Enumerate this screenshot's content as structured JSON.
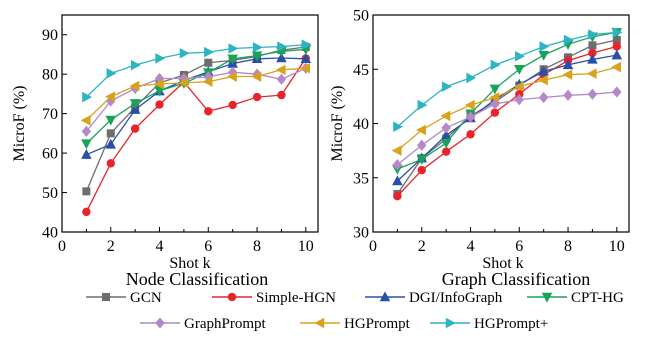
{
  "chart_data": [
    {
      "type": "line",
      "title": "Node Classification",
      "xlabel": "Shot k",
      "ylabel": "MicroF (%)",
      "xlim": [
        0,
        10.5
      ],
      "ylim": [
        40,
        95
      ],
      "xticks": [
        0,
        2,
        4,
        6,
        8,
        10
      ],
      "yticks": [
        40,
        50,
        60,
        70,
        80,
        90
      ],
      "x": [
        1,
        2,
        3,
        4,
        5,
        6,
        7,
        8,
        9,
        10
      ],
      "series": [
        {
          "name": "GCN",
          "color": "#6d6d6d",
          "marker": "square",
          "values": [
            50.3,
            65.0,
            71.6,
            77.8,
            79.8,
            82.9,
            83.5,
            84.5,
            86.1,
            86.9
          ]
        },
        {
          "name": "Simple-HGN",
          "color": "#e8242b",
          "marker": "circle",
          "values": [
            45.1,
            57.4,
            66.2,
            72.3,
            78.0,
            70.6,
            72.2,
            74.2,
            74.7,
            84.0
          ]
        },
        {
          "name": "DGI/InfoGraph",
          "color": "#2a4fa8",
          "marker": "triangle-up",
          "values": [
            59.6,
            62.2,
            71.0,
            75.7,
            78.4,
            80.6,
            82.7,
            83.9,
            84.1,
            83.9
          ]
        },
        {
          "name": "CPT-HG",
          "color": "#18a35a",
          "marker": "triangle-down",
          "values": [
            62.4,
            68.4,
            72.6,
            75.8,
            77.7,
            80.4,
            83.9,
            84.7,
            85.8,
            86.3
          ]
        },
        {
          "name": "GraphPrompt",
          "color": "#b589c9",
          "marker": "diamond",
          "values": [
            65.5,
            73.2,
            76.4,
            78.9,
            78.9,
            79.3,
            80.5,
            80.0,
            78.7,
            81.5
          ]
        },
        {
          "name": "HGPrompt",
          "color": "#d8a21c",
          "marker": "triangle-left",
          "values": [
            68.3,
            74.3,
            77.0,
            77.5,
            77.8,
            78.1,
            79.4,
            79.4,
            81.1,
            81.5
          ]
        },
        {
          "name": "HGPrompt+",
          "color": "#2db4c2",
          "marker": "triangle-right",
          "values": [
            74.2,
            80.2,
            82.3,
            84.0,
            85.3,
            85.6,
            86.5,
            86.8,
            87.0,
            87.5
          ]
        }
      ]
    },
    {
      "type": "line",
      "title": "Graph Classification",
      "xlabel": "Shot k",
      "ylabel": "MicroF (%)",
      "xlim": [
        0,
        10.5
      ],
      "ylim": [
        30,
        50
      ],
      "xticks": [
        0,
        2,
        4,
        6,
        8,
        10
      ],
      "yticks": [
        30,
        35,
        40,
        45,
        50
      ],
      "x": [
        1,
        2,
        3,
        4,
        5,
        6,
        7,
        8,
        9,
        10
      ],
      "series": [
        {
          "name": "GCN",
          "color": "#6d6d6d",
          "marker": "square",
          "values": [
            33.5,
            36.8,
            38.6,
            40.7,
            42.0,
            43.5,
            45.0,
            46.1,
            47.2,
            47.7
          ]
        },
        {
          "name": "Simple-HGN",
          "color": "#e8242b",
          "marker": "circle",
          "values": [
            33.3,
            35.7,
            37.4,
            39.0,
            41.0,
            42.7,
            44.5,
            45.8,
            46.5,
            47.1
          ]
        },
        {
          "name": "DGI/InfoGraph",
          "color": "#2a4fa8",
          "marker": "triangle-up",
          "values": [
            34.7,
            36.8,
            38.9,
            40.5,
            42.2,
            43.6,
            44.8,
            45.4,
            45.9,
            46.3
          ]
        },
        {
          "name": "CPT-HG",
          "color": "#18a35a",
          "marker": "triangle-down",
          "values": [
            35.8,
            36.7,
            38.2,
            40.9,
            43.2,
            45.0,
            46.3,
            47.3,
            48.0,
            48.4
          ]
        },
        {
          "name": "GraphPrompt",
          "color": "#b589c9",
          "marker": "diamond",
          "values": [
            36.2,
            38.0,
            39.6,
            40.6,
            41.8,
            42.2,
            42.4,
            42.6,
            42.7,
            42.9
          ]
        },
        {
          "name": "HGPrompt",
          "color": "#d8a21c",
          "marker": "triangle-left",
          "values": [
            37.5,
            39.4,
            40.7,
            41.7,
            42.4,
            43.4,
            44.0,
            44.5,
            44.6,
            45.2
          ]
        },
        {
          "name": "HGPrompt+",
          "color": "#2db4c2",
          "marker": "triangle-right",
          "values": [
            39.7,
            41.7,
            43.4,
            44.2,
            45.4,
            46.2,
            47.1,
            47.7,
            48.2,
            48.4
          ]
        }
      ]
    }
  ],
  "legend": [
    {
      "name": "GCN",
      "color": "#6d6d6d",
      "marker": "square"
    },
    {
      "name": "Simple-HGN",
      "color": "#e8242b",
      "marker": "circle"
    },
    {
      "name": "DGI/InfoGraph",
      "color": "#2a4fa8",
      "marker": "triangle-up"
    },
    {
      "name": "CPT-HG",
      "color": "#18a35a",
      "marker": "triangle-down"
    },
    {
      "name": "GraphPrompt",
      "color": "#b589c9",
      "marker": "diamond"
    },
    {
      "name": "HGPrompt",
      "color": "#d8a21c",
      "marker": "triangle-left"
    },
    {
      "name": "HGPrompt+",
      "color": "#2db4c2",
      "marker": "triangle-right"
    }
  ]
}
